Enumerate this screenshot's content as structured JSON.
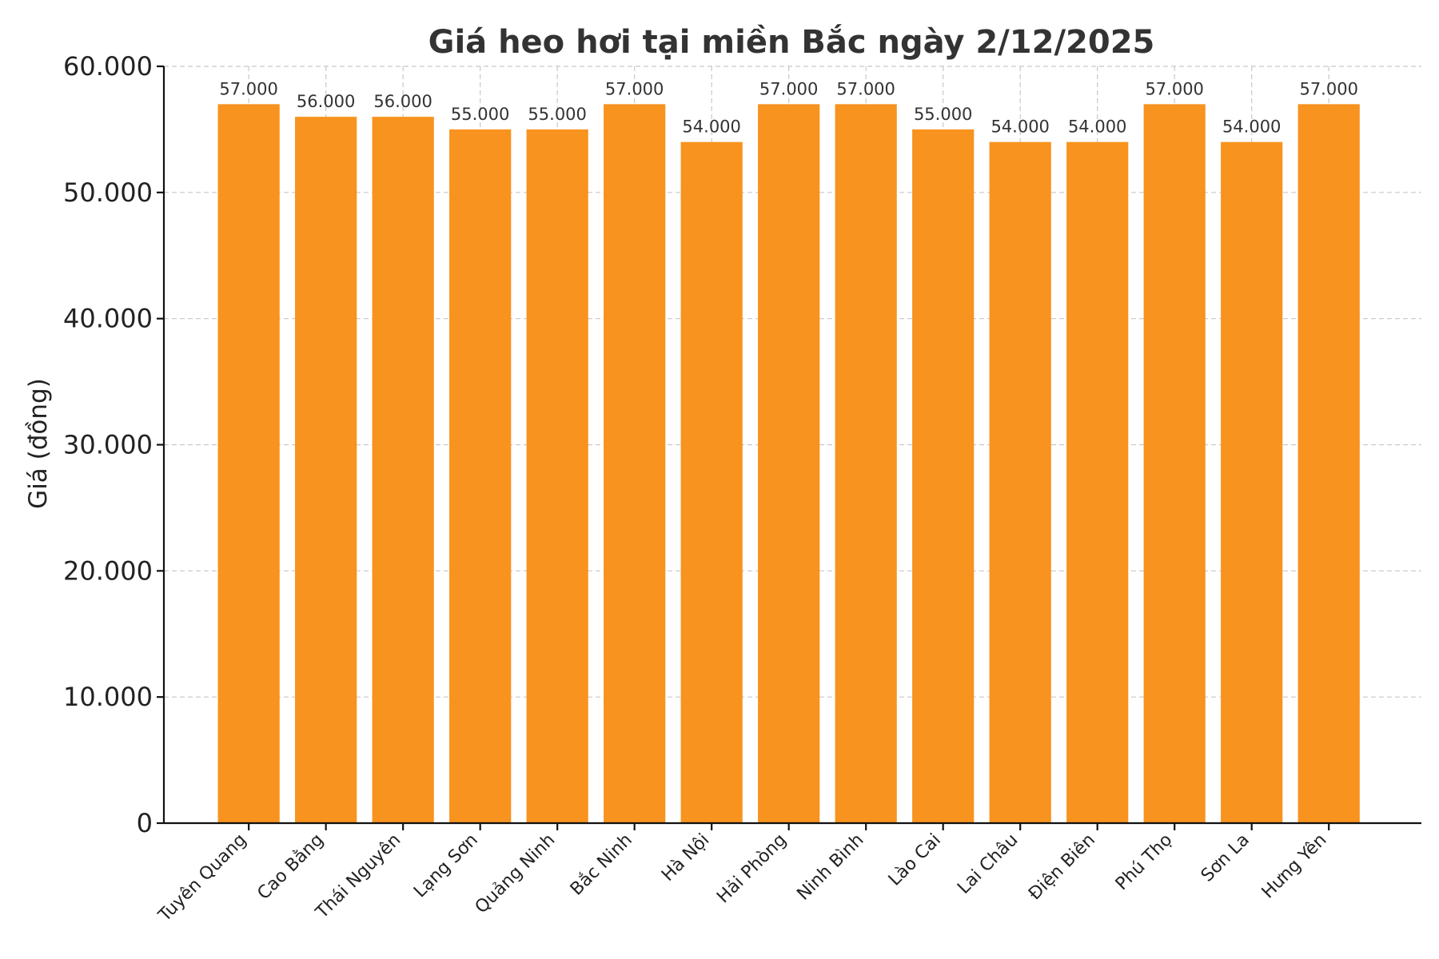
{
  "chart_data": {
    "type": "bar",
    "title": "Giá heo hơi tại miền Bắc ngày 2/12/2025",
    "xlabel": "",
    "ylabel": "Giá (đồng)",
    "ylim": [
      0,
      60000
    ],
    "yticks": [
      0,
      10000,
      20000,
      30000,
      40000,
      50000,
      60000
    ],
    "ytick_labels": [
      "0",
      "10.000",
      "20.000",
      "30.000",
      "40.000",
      "50.000",
      "60.000"
    ],
    "grid": true,
    "bar_color": "#f7931e",
    "categories": [
      "Tuyên Quang",
      "Cao Bằng",
      "Thái Nguyên",
      "Lạng Sơn",
      "Quảng Ninh",
      "Bắc Ninh",
      "Hà Nội",
      "Hải Phòng",
      "Ninh Bình",
      "Lào Cai",
      "Lai Châu",
      "Điện Biên",
      "Phú Thọ",
      "Sơn La",
      "Hưng Yên"
    ],
    "values": [
      57000,
      56000,
      56000,
      55000,
      55000,
      57000,
      54000,
      57000,
      57000,
      55000,
      54000,
      54000,
      57000,
      54000,
      57000
    ],
    "value_labels": [
      "57.000",
      "56.000",
      "56.000",
      "55.000",
      "55.000",
      "57.000",
      "54.000",
      "57.000",
      "57.000",
      "55.000",
      "54.000",
      "54.000",
      "57.000",
      "54.000",
      "57.000"
    ]
  }
}
